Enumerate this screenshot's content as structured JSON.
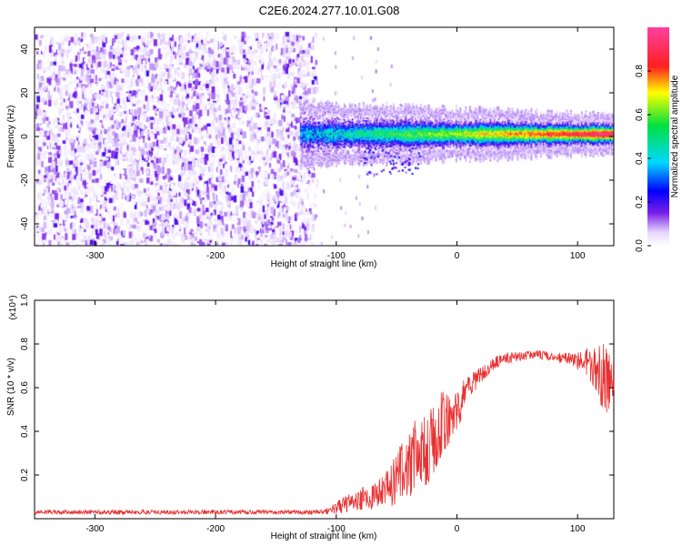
{
  "title": "C2E6.2024.277.10.01.G08",
  "chart_data": [
    {
      "type": "heatmap",
      "xlabel": "Height of straight line (km)",
      "ylabel": "Frequency (Hz)",
      "xlim": [
        -350,
        130
      ],
      "ylim": [
        -50,
        50
      ],
      "xticks": [
        -300,
        -200,
        -100,
        0,
        100
      ],
      "yticks": [
        -40,
        -20,
        0,
        20,
        40
      ],
      "colorbar": {
        "label": "Normalized spectral amplitude",
        "range": [
          0,
          1
        ],
        "ticks": [
          "0.0",
          "0.2",
          "0.4",
          "0.6",
          "0.8"
        ],
        "colormap": "rainbow (white-violet-blue-cyan-green-yellow-red-magenta)"
      },
      "regions": [
        {
          "description": "broadband noise",
          "x_range": [
            -350,
            -122
          ],
          "freq_range": [
            -50,
            48
          ],
          "amplitude_range": [
            0.0,
            0.2
          ]
        },
        {
          "description": "signal band",
          "x_range": [
            -130,
            130
          ],
          "center_freq": 1.5,
          "half_width_hz": 4,
          "amplitude_range": [
            0.3,
            1.0
          ]
        }
      ]
    },
    {
      "type": "line",
      "xlabel": "Height of straight line (km)",
      "ylabel": "SNR (10 * v/v)",
      "y_multiplier": "(x10⁴)",
      "xlim": [
        -350,
        130
      ],
      "ylim": [
        0,
        1.0
      ],
      "xticks": [
        -300,
        -200,
        -100,
        0,
        100
      ],
      "yticks": [
        "0.2",
        "0.4",
        "0.6",
        "0.8",
        "1.0"
      ],
      "series": [
        {
          "color": "#e83030",
          "x": [
            -350,
            -300,
            -250,
            -200,
            -150,
            -110,
            -100,
            -90,
            -80,
            -70,
            -60,
            -50,
            -45,
            -40,
            -35,
            -30,
            -25,
            -20,
            -15,
            -10,
            -5,
            0,
            5,
            10,
            20,
            30,
            40,
            50,
            60,
            70,
            80,
            90,
            100,
            110,
            115,
            120,
            125,
            130
          ],
          "y": [
            0.03,
            0.03,
            0.03,
            0.03,
            0.03,
            0.03,
            0.05,
            0.07,
            0.09,
            0.1,
            0.12,
            0.18,
            0.22,
            0.25,
            0.28,
            0.3,
            0.33,
            0.38,
            0.42,
            0.45,
            0.48,
            0.5,
            0.55,
            0.6,
            0.66,
            0.71,
            0.73,
            0.74,
            0.75,
            0.75,
            0.74,
            0.73,
            0.72,
            0.71,
            0.69,
            0.66,
            0.63,
            0.64
          ],
          "noise_amplitude": [
            0.01,
            0.01,
            0.01,
            0.01,
            0.01,
            0.01,
            0.03,
            0.04,
            0.05,
            0.06,
            0.08,
            0.12,
            0.15,
            0.16,
            0.17,
            0.18,
            0.18,
            0.18,
            0.17,
            0.15,
            0.12,
            0.1,
            0.08,
            0.06,
            0.04,
            0.03,
            0.03,
            0.02,
            0.02,
            0.02,
            0.02,
            0.03,
            0.04,
            0.08,
            0.12,
            0.15,
            0.15,
            0.12
          ]
        }
      ]
    }
  ]
}
